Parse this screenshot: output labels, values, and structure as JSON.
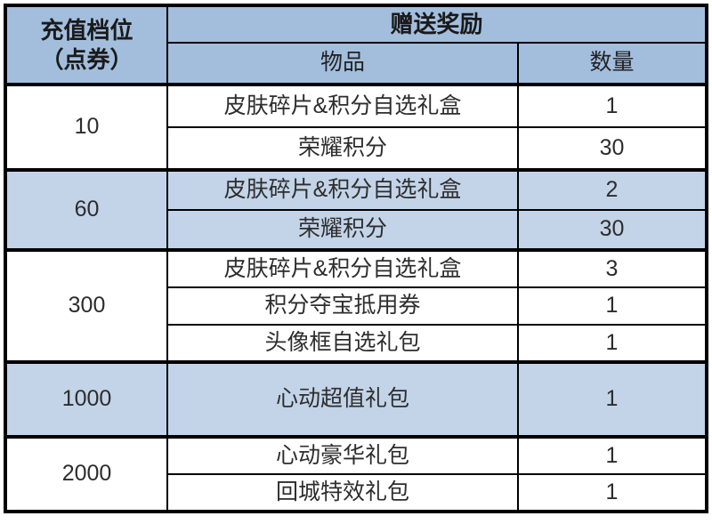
{
  "header": {
    "tier_line1": "充值档位",
    "tier_line2": "（点券）",
    "rewards": "赠送奖励",
    "item": "物品",
    "qty": "数量"
  },
  "groups": [
    {
      "tier": "10",
      "rows": [
        {
          "item": "皮肤碎片&积分自选礼盒",
          "qty": "1"
        },
        {
          "item": "荣耀积分",
          "qty": "30"
        }
      ]
    },
    {
      "tier": "60",
      "rows": [
        {
          "item": "皮肤碎片&积分自选礼盒",
          "qty": "2"
        },
        {
          "item": "荣耀积分",
          "qty": "30"
        }
      ]
    },
    {
      "tier": "300",
      "rows": [
        {
          "item": "皮肤碎片&积分自选礼盒",
          "qty": "3"
        },
        {
          "item": "积分夺宝抵用券",
          "qty": "1"
        },
        {
          "item": "头像框自选礼包",
          "qty": "1"
        }
      ]
    },
    {
      "tier": "1000",
      "rows": [
        {
          "item": "心动超值礼包",
          "qty": "1"
        }
      ]
    },
    {
      "tier": "2000",
      "rows": [
        {
          "item": "心动豪华礼包",
          "qty": "1"
        },
        {
          "item": "回城特效礼包",
          "qty": "1"
        }
      ]
    }
  ],
  "colors": {
    "header_bg": "#a3bedd",
    "highlight_bg": "#c3d4e9",
    "border": "#000000"
  }
}
